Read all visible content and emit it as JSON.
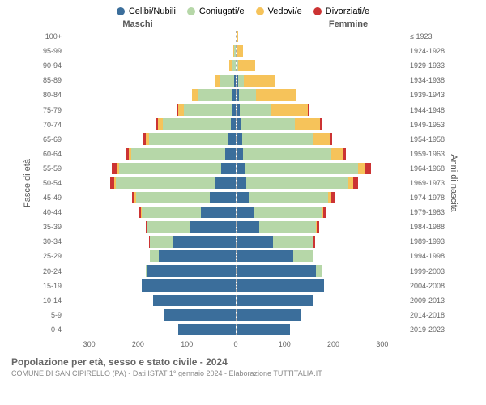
{
  "legend": [
    {
      "label": "Celibi/Nubili",
      "color": "#3b6e9b"
    },
    {
      "label": "Coniugati/e",
      "color": "#b6d7a8"
    },
    {
      "label": "Vedovi/e",
      "color": "#f6c35a"
    },
    {
      "label": "Divorziati/e",
      "color": "#cc3333"
    }
  ],
  "headers": {
    "male": "Maschi",
    "female": "Femmine"
  },
  "ylabels": {
    "left": "Fasce di età",
    "right": "Anni di nascita"
  },
  "chart": {
    "type": "population-pyramid",
    "xmax": 300,
    "xticks": [
      300,
      200,
      100,
      0,
      100,
      200,
      300
    ],
    "grid_positions_pct": [
      0,
      16.67,
      33.33,
      50,
      66.67,
      83.33,
      100
    ],
    "background_color": "#ffffff",
    "grid_color": "#dddddd",
    "center_line_color": "#aaaaaa",
    "rows": [
      {
        "age": "100+",
        "birth": "≤ 1923",
        "m": {
          "cn": 0,
          "co": 0,
          "v": 0,
          "d": 0
        },
        "f": {
          "cn": 0,
          "co": 0,
          "v": 3,
          "d": 0
        }
      },
      {
        "age": "95-99",
        "birth": "1924-1928",
        "m": {
          "cn": 0,
          "co": 2,
          "v": 2,
          "d": 0
        },
        "f": {
          "cn": 0,
          "co": 0,
          "v": 12,
          "d": 0
        }
      },
      {
        "age": "90-94",
        "birth": "1929-1933",
        "m": {
          "cn": 0,
          "co": 6,
          "v": 5,
          "d": 0
        },
        "f": {
          "cn": 2,
          "co": 2,
          "v": 30,
          "d": 0
        }
      },
      {
        "age": "85-89",
        "birth": "1934-1938",
        "m": {
          "cn": 2,
          "co": 25,
          "v": 8,
          "d": 0
        },
        "f": {
          "cn": 3,
          "co": 10,
          "v": 55,
          "d": 0
        }
      },
      {
        "age": "80-84",
        "birth": "1939-1943",
        "m": {
          "cn": 5,
          "co": 60,
          "v": 12,
          "d": 0
        },
        "f": {
          "cn": 5,
          "co": 30,
          "v": 70,
          "d": 0
        }
      },
      {
        "age": "75-79",
        "birth": "1944-1948",
        "m": {
          "cn": 6,
          "co": 85,
          "v": 10,
          "d": 2
        },
        "f": {
          "cn": 6,
          "co": 55,
          "v": 65,
          "d": 2
        }
      },
      {
        "age": "70-74",
        "birth": "1949-1953",
        "m": {
          "cn": 8,
          "co": 120,
          "v": 8,
          "d": 3
        },
        "f": {
          "cn": 8,
          "co": 95,
          "v": 45,
          "d": 3
        }
      },
      {
        "age": "65-69",
        "birth": "1954-1958",
        "m": {
          "cn": 12,
          "co": 140,
          "v": 6,
          "d": 4
        },
        "f": {
          "cn": 10,
          "co": 125,
          "v": 30,
          "d": 4
        }
      },
      {
        "age": "60-64",
        "birth": "1959-1963",
        "m": {
          "cn": 18,
          "co": 165,
          "v": 5,
          "d": 5
        },
        "f": {
          "cn": 12,
          "co": 155,
          "v": 20,
          "d": 6
        }
      },
      {
        "age": "55-59",
        "birth": "1964-1968",
        "m": {
          "cn": 25,
          "co": 180,
          "v": 4,
          "d": 8
        },
        "f": {
          "cn": 15,
          "co": 200,
          "v": 12,
          "d": 10
        }
      },
      {
        "age": "50-54",
        "birth": "1969-1973",
        "m": {
          "cn": 35,
          "co": 175,
          "v": 3,
          "d": 7
        },
        "f": {
          "cn": 18,
          "co": 180,
          "v": 8,
          "d": 8
        }
      },
      {
        "age": "45-49",
        "birth": "1974-1978",
        "m": {
          "cn": 45,
          "co": 130,
          "v": 2,
          "d": 5
        },
        "f": {
          "cn": 22,
          "co": 140,
          "v": 5,
          "d": 6
        }
      },
      {
        "age": "40-44",
        "birth": "1979-1983",
        "m": {
          "cn": 60,
          "co": 105,
          "v": 1,
          "d": 4
        },
        "f": {
          "cn": 30,
          "co": 120,
          "v": 3,
          "d": 5
        }
      },
      {
        "age": "35-39",
        "birth": "1984-1988",
        "m": {
          "cn": 80,
          "co": 75,
          "v": 0,
          "d": 3
        },
        "f": {
          "cn": 40,
          "co": 100,
          "v": 2,
          "d": 4
        }
      },
      {
        "age": "30-34",
        "birth": "1989-1993",
        "m": {
          "cn": 110,
          "co": 40,
          "v": 0,
          "d": 2
        },
        "f": {
          "cn": 65,
          "co": 70,
          "v": 1,
          "d": 3
        }
      },
      {
        "age": "25-29",
        "birth": "1994-1998",
        "m": {
          "cn": 135,
          "co": 15,
          "v": 0,
          "d": 1
        },
        "f": {
          "cn": 100,
          "co": 35,
          "v": 0,
          "d": 1
        }
      },
      {
        "age": "20-24",
        "birth": "1999-2003",
        "m": {
          "cn": 155,
          "co": 3,
          "v": 0,
          "d": 0
        },
        "f": {
          "cn": 140,
          "co": 10,
          "v": 0,
          "d": 0
        }
      },
      {
        "age": "15-19",
        "birth": "2004-2008",
        "m": {
          "cn": 165,
          "co": 0,
          "v": 0,
          "d": 0
        },
        "f": {
          "cn": 155,
          "co": 0,
          "v": 0,
          "d": 0
        }
      },
      {
        "age": "10-14",
        "birth": "2009-2013",
        "m": {
          "cn": 145,
          "co": 0,
          "v": 0,
          "d": 0
        },
        "f": {
          "cn": 135,
          "co": 0,
          "v": 0,
          "d": 0
        }
      },
      {
        "age": "5-9",
        "birth": "2014-2018",
        "m": {
          "cn": 125,
          "co": 0,
          "v": 0,
          "d": 0
        },
        "f": {
          "cn": 115,
          "co": 0,
          "v": 0,
          "d": 0
        }
      },
      {
        "age": "0-4",
        "birth": "2019-2023",
        "m": {
          "cn": 100,
          "co": 0,
          "v": 0,
          "d": 0
        },
        "f": {
          "cn": 95,
          "co": 0,
          "v": 0,
          "d": 0
        }
      }
    ]
  },
  "footer": {
    "title": "Popolazione per età, sesso e stato civile - 2024",
    "subtitle": "COMUNE DI SAN CIPIRELLO (PA) - Dati ISTAT 1° gennaio 2024 - Elaborazione TUTTITALIA.IT"
  }
}
